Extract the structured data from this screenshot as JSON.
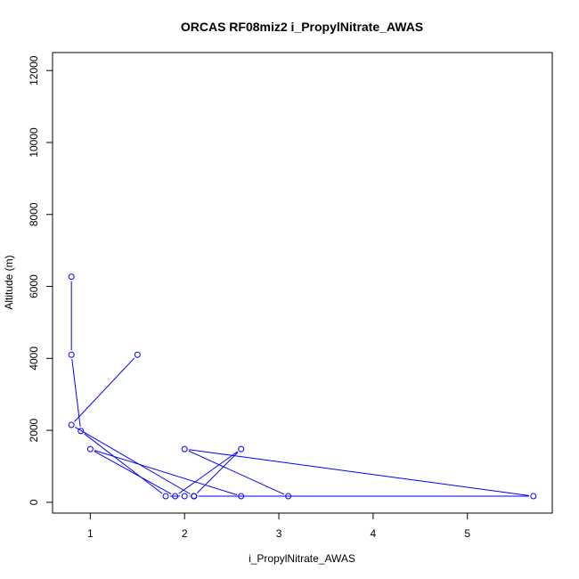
{
  "chart_data": {
    "type": "line",
    "title": "ORCAS RF08miz2 i_PropylNitrate_AWAS",
    "xlabel": "i_PropylNitrate_AWAS",
    "ylabel": "Altitude (m)",
    "xlim": [
      0.6,
      5.9
    ],
    "ylim": [
      -300,
      12500
    ],
    "x_ticks": [
      1,
      2,
      3,
      4,
      5
    ],
    "y_ticks": [
      0,
      2000,
      4000,
      6000,
      8000,
      10000,
      12000
    ],
    "grid": false,
    "series": [
      {
        "color": "#0000ff",
        "marker": "open-circle",
        "x": [
          0.8,
          0.8,
          0.9,
          1.8,
          2.0,
          2.1,
          2.6,
          1.9,
          1.0,
          2.6,
          2.1,
          3.1,
          2.0,
          5.7,
          2.1,
          0.8,
          1.5
        ],
        "y": [
          6270,
          4100,
          1980,
          170,
          170,
          170,
          1480,
          170,
          1480,
          170,
          170,
          170,
          1480,
          170,
          170,
          2150,
          4100
        ]
      }
    ]
  }
}
